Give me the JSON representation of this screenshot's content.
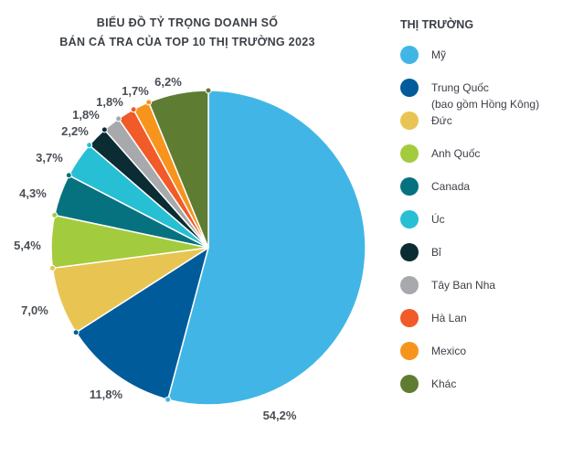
{
  "chart_data": {
    "type": "pie",
    "title_lines": [
      "BIỂU ĐỒ TỶ TRỌNG DOANH SỐ",
      "BÁN CÁ TRA CỦA TOP 10 THỊ TRƯỜNG 2023"
    ],
    "legend_title": "THỊ TRƯỜNG",
    "legend_placement": "right",
    "slices": [
      {
        "name": "Mỹ",
        "name_lines": [
          "Mỹ"
        ],
        "value": 54.2,
        "label": "54,2%",
        "color": "#41b6e6"
      },
      {
        "name": "Trung Quốc (bao gồm Hồng Kông)",
        "name_lines": [
          "Trung Quốc",
          "(bao gồm Hồng Kông)"
        ],
        "value": 11.8,
        "label": "11,8%",
        "color": "#005b9a"
      },
      {
        "name": "Đức",
        "name_lines": [
          "Đức"
        ],
        "value": 7.0,
        "label": "7,0%",
        "color": "#e8c553"
      },
      {
        "name": "Anh Quốc",
        "name_lines": [
          "Anh Quốc"
        ],
        "value": 5.4,
        "label": "5,4%",
        "color": "#a3cb3e"
      },
      {
        "name": "Canada",
        "name_lines": [
          "Canada"
        ],
        "value": 4.3,
        "label": "4,3%",
        "color": "#07727f"
      },
      {
        "name": "Úc",
        "name_lines": [
          "Úc"
        ],
        "value": 3.7,
        "label": "3,7%",
        "color": "#27bfd4"
      },
      {
        "name": "Bỉ",
        "name_lines": [
          "Bỉ"
        ],
        "value": 2.2,
        "label": "2,2%",
        "color": "#0b2c33"
      },
      {
        "name": "Tây Ban Nha",
        "name_lines": [
          "Tây Ban Nha"
        ],
        "value": 1.8,
        "label": "1,8%",
        "color": "#a7a9ac"
      },
      {
        "name": "Hà Lan",
        "name_lines": [
          "Hà Lan"
        ],
        "value": 1.8,
        "label": "1,8%",
        "color": "#f15a29"
      },
      {
        "name": "Mexico",
        "name_lines": [
          "Mexico"
        ],
        "value": 1.7,
        "label": "1,7%",
        "color": "#f7941d"
      },
      {
        "name": "Khác",
        "name_lines": [
          "Khác"
        ],
        "value": 6.2,
        "label": "6,2%",
        "color": "#5e7d33"
      }
    ]
  }
}
